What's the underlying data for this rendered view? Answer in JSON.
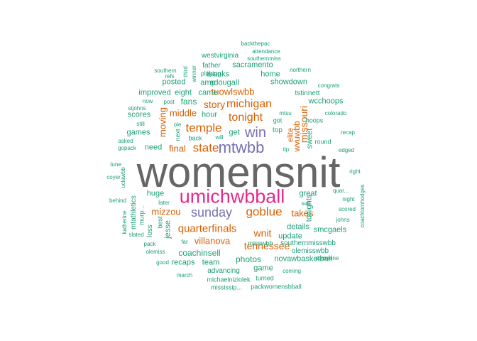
{
  "words": [
    {
      "text": "womensnit",
      "color": "#666666"
    },
    {
      "text": "umichwbball",
      "color": "#e7298a"
    },
    {
      "text": "mtwbb",
      "color": "#7570b3"
    },
    {
      "text": "sunday",
      "color": "#7570b3"
    },
    {
      "text": "win",
      "color": "#7570b3"
    },
    {
      "text": "temple",
      "color": "#d95f02"
    },
    {
      "text": "michigan",
      "color": "#d95f02"
    },
    {
      "text": "tonight",
      "color": "#d95f02"
    },
    {
      "text": "state",
      "color": "#d95f02"
    },
    {
      "text": "goblue",
      "color": "#d95f02"
    },
    {
      "text": "quarterfinals",
      "color": "#d95f02"
    },
    {
      "text": "missouri",
      "color": "#d95f02"
    },
    {
      "text": "story",
      "color": "#d95f02"
    },
    {
      "text": "tennessee",
      "color": "#d95f02"
    },
    {
      "text": "wnit",
      "color": "#d95f02"
    },
    {
      "text": "takes",
      "color": "#d95f02"
    },
    {
      "text": "villanova",
      "color": "#d95f02"
    },
    {
      "text": "mizzou",
      "color": "#d95f02"
    },
    {
      "text": "tuowlswbb",
      "color": "#d95f02"
    },
    {
      "text": "middle",
      "color": "#d95f02"
    },
    {
      "text": "moving",
      "color": "#d95f02"
    },
    {
      "text": "final",
      "color": "#d95f02"
    },
    {
      "text": "wvuwbb",
      "color": "#d95f02"
    },
    {
      "text": "elite",
      "color": "#d95f02"
    },
    {
      "text": "get",
      "color": "#1b9e77"
    },
    {
      "text": "fans",
      "color": "#1b9e77"
    },
    {
      "text": "need",
      "color": "#1b9e77"
    },
    {
      "text": "games",
      "color": "#1b9e77"
    },
    {
      "text": "hour",
      "color": "#1b9e77"
    },
    {
      "text": "came",
      "color": "#1b9e77"
    },
    {
      "text": "huge",
      "color": "#1b9e77"
    },
    {
      "text": "great",
      "color": "#1b9e77"
    },
    {
      "text": "photos",
      "color": "#1b9e77"
    },
    {
      "text": "details",
      "color": "#1b9e77"
    },
    {
      "text": "tonights",
      "color": "#1b9e77"
    },
    {
      "text": "sweet",
      "color": "#1b9e77"
    },
    {
      "text": "coachinsell",
      "color": "#1b9e77"
    },
    {
      "text": "smcgaels",
      "color": "#1b9e77"
    },
    {
      "text": "update",
      "color": "#1b9e77"
    },
    {
      "text": "scores",
      "color": "#1b9e77"
    },
    {
      "text": "top",
      "color": "#1b9e77"
    },
    {
      "text": "wcchoops",
      "color": "#1b9e77"
    },
    {
      "text": "tstinnett",
      "color": "#1b9e77"
    },
    {
      "text": "showdown",
      "color": "#1b9e77"
    },
    {
      "text": "adougall",
      "color": "#1b9e77"
    },
    {
      "text": "thanks",
      "color": "#1b9e77"
    },
    {
      "text": "home",
      "color": "#1b9e77"
    },
    {
      "text": "sacramento",
      "color": "#1b9e77"
    },
    {
      "text": "westvirginia",
      "color": "#1b9e77"
    },
    {
      "text": "improved",
      "color": "#1b9e77"
    },
    {
      "text": "eight",
      "color": "#1b9e77"
    },
    {
      "text": "posted",
      "color": "#1b9e77"
    },
    {
      "text": "amp",
      "color": "#1b9e77"
    },
    {
      "text": "father",
      "color": "#1b9e77"
    },
    {
      "text": "playing",
      "color": "#1b9e77"
    },
    {
      "text": "team",
      "color": "#1b9e77"
    },
    {
      "text": "recaps",
      "color": "#1b9e77"
    },
    {
      "text": "advancing",
      "color": "#1b9e77"
    },
    {
      "text": "game",
      "color": "#1b9e77"
    },
    {
      "text": "novawbasketball",
      "color": "#1b9e77"
    },
    {
      "text": "olemisswbb",
      "color": "#1b9e77"
    },
    {
      "text": "southernmisswbb",
      "color": "#1b9e77"
    },
    {
      "text": "misswbb",
      "color": "#1b9e77"
    },
    {
      "text": "jesse",
      "color": "#1b9e77"
    },
    {
      "text": "loss",
      "color": "#1b9e77"
    },
    {
      "text": "mtathletics",
      "color": "#1b9e77"
    },
    {
      "text": "murp...",
      "color": "#1b9e77"
    },
    {
      "text": "best",
      "color": "#1b9e77"
    },
    {
      "text": "far",
      "color": "#1b9e77"
    },
    {
      "text": "turned",
      "color": "#1b9e77"
    },
    {
      "text": "michaelniziolek",
      "color": "#1b9e77"
    },
    {
      "text": "coming",
      "color": "#1b9e77"
    },
    {
      "text": "mississip...",
      "color": "#1b9e77"
    },
    {
      "text": "packwomensbball",
      "color": "#1b9e77"
    },
    {
      "text": "march",
      "color": "#1b9e77"
    },
    {
      "text": "good",
      "color": "#1b9e77"
    },
    {
      "text": "olemiss",
      "color": "#1b9e77"
    },
    {
      "text": "pack",
      "color": "#1b9e77"
    },
    {
      "text": "slated",
      "color": "#1b9e77"
    },
    {
      "text": "katherine",
      "color": "#1b9e77"
    },
    {
      "text": "behind",
      "color": "#1b9e77"
    },
    {
      "text": "uclawbb",
      "color": "#1b9e77"
    },
    {
      "text": "coyer",
      "color": "#1b9e77"
    },
    {
      "text": "tune",
      "color": "#1b9e77"
    },
    {
      "text": "later",
      "color": "#1b9e77"
    },
    {
      "text": "gopack",
      "color": "#1b9e77"
    },
    {
      "text": "asked",
      "color": "#1b9e77"
    },
    {
      "text": "still",
      "color": "#1b9e77"
    },
    {
      "text": "stjohns",
      "color": "#1b9e77"
    },
    {
      "text": "now",
      "color": "#1b9e77"
    },
    {
      "text": "ole",
      "color": "#1b9e77"
    },
    {
      "text": "post",
      "color": "#1b9e77"
    },
    {
      "text": "next",
      "color": "#1b9e77"
    },
    {
      "text": "back",
      "color": "#1b9e77"
    },
    {
      "text": "will",
      "color": "#1b9e77"
    },
    {
      "text": "tip",
      "color": "#1b9e77"
    },
    {
      "text": "mtsu",
      "color": "#1b9e77"
    },
    {
      "text": "got",
      "color": "#1b9e77"
    },
    {
      "text": "hoops",
      "color": "#1b9e77"
    },
    {
      "text": "colorado",
      "color": "#1b9e77"
    },
    {
      "text": "recap",
      "color": "#1b9e77"
    },
    {
      "text": "round",
      "color": "#1b9e77"
    },
    {
      "text": "edged",
      "color": "#1b9e77"
    },
    {
      "text": "right",
      "color": "#1b9e77"
    },
    {
      "text": "quar...",
      "color": "#1b9e77"
    },
    {
      "text": "night",
      "color": "#1b9e77"
    },
    {
      "text": "scored",
      "color": "#1b9e77"
    },
    {
      "text": "johns",
      "color": "#1b9e77"
    },
    {
      "text": "coachtomhodges",
      "color": "#1b9e77"
    },
    {
      "text": "son",
      "color": "#1b9e77"
    },
    {
      "text": "someone",
      "color": "#1b9e77"
    },
    {
      "text": "congrats",
      "color": "#1b9e77"
    },
    {
      "text": "northern",
      "color": "#1b9e77"
    },
    {
      "text": "southern",
      "color": "#1b9e77"
    },
    {
      "text": "refs",
      "color": "#1b9e77"
    },
    {
      "text": "third",
      "color": "#1b9e77"
    },
    {
      "text": "winner",
      "color": "#1b9e77"
    },
    {
      "text": "southernmiss",
      "color": "#1b9e77"
    },
    {
      "text": "attendance",
      "color": "#1b9e77"
    },
    {
      "text": "backthepac",
      "color": "#1b9e77"
    }
  ]
}
